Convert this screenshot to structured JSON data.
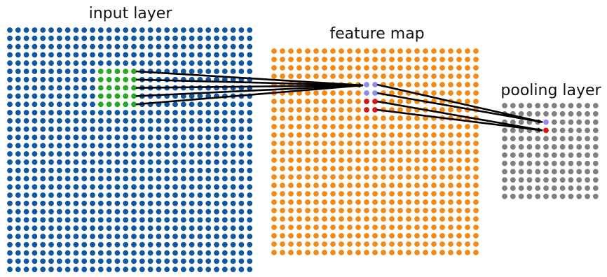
{
  "labels": {
    "input_layer": "input layer",
    "feature_map": "feature map",
    "pooling_layer": "pooling layer"
  },
  "layers": {
    "input": {
      "rows": 30,
      "cols": 30,
      "color": "#0f56a3"
    },
    "feature": {
      "rows": 25,
      "cols": 25,
      "color": "#f28a14"
    },
    "pooling": {
      "rows": 12,
      "cols": 12,
      "color": "#808080"
    }
  },
  "highlights": {
    "receptive_field": {
      "rows": [
        5,
        9
      ],
      "cols": [
        11,
        15
      ],
      "color": "#22aa22"
    },
    "feature_units_upper": {
      "cells": [
        [
          4,
          11
        ],
        [
          4,
          12
        ],
        [
          5,
          11
        ],
        [
          5,
          12
        ]
      ],
      "color": "#8c8cf0"
    },
    "feature_units_lower": {
      "cells": [
        [
          6,
          11
        ],
        [
          6,
          12
        ],
        [
          7,
          11
        ],
        [
          7,
          12
        ]
      ],
      "color": "#dd1111"
    },
    "pool_unit_upper": {
      "cell": [
        2,
        5
      ],
      "color": "#8c8cf0"
    },
    "pool_unit_lower": {
      "cell": [
        3,
        5
      ],
      "color": "#dd1111"
    }
  },
  "arrow_color": "#000000"
}
